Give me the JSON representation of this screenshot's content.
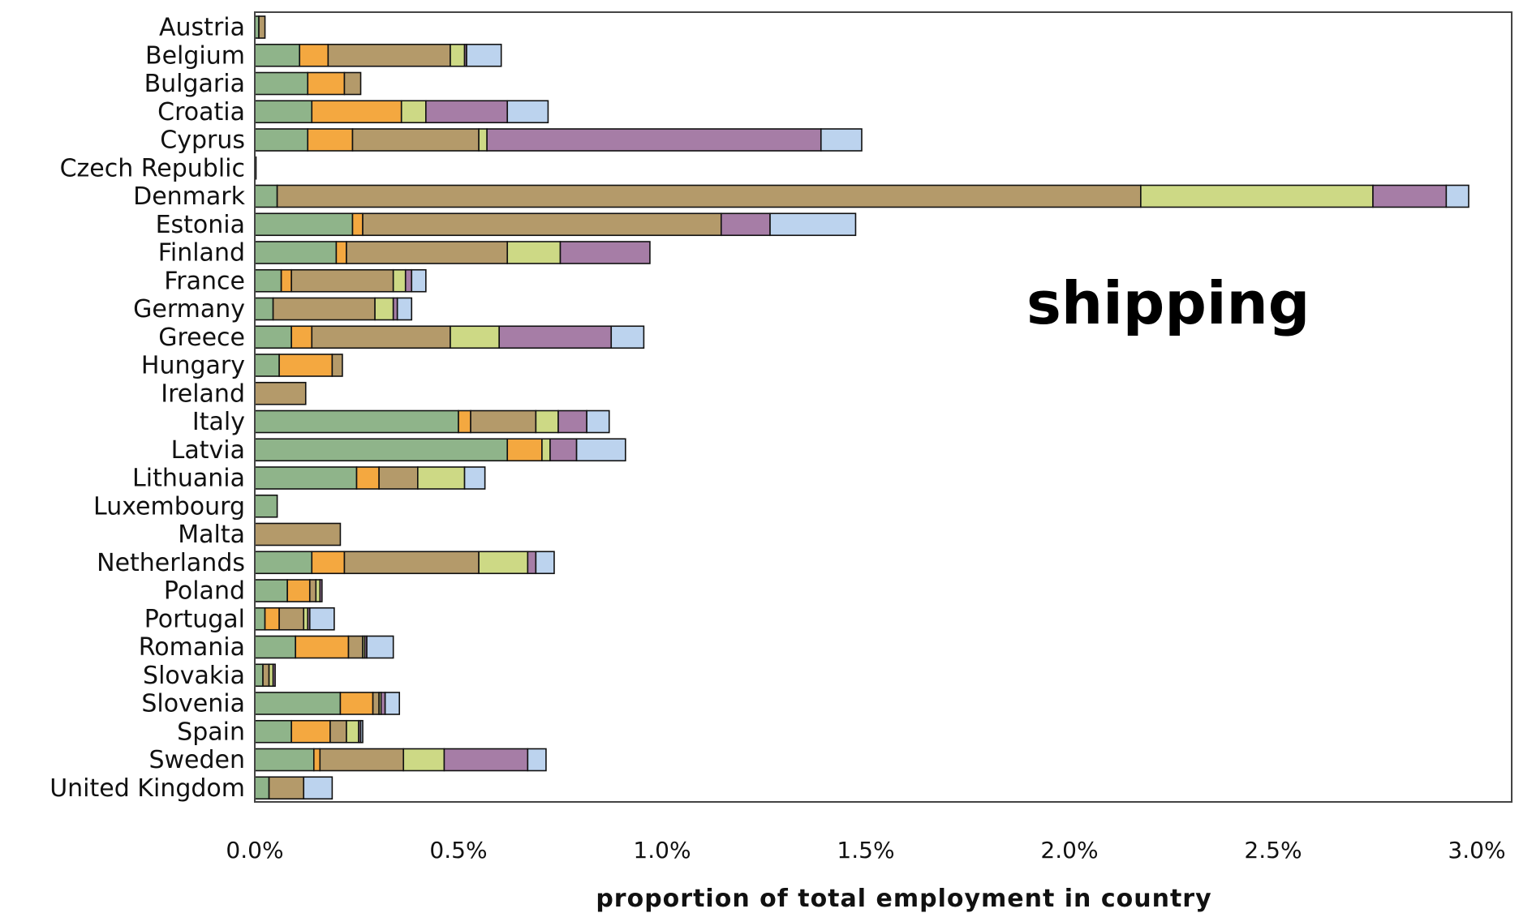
{
  "chart_data": {
    "type": "bar",
    "orientation": "horizontal",
    "stacked": true,
    "annotation": "shipping",
    "xlabel": "proportion of total employment in country",
    "ylabel": "",
    "xlim": [
      0,
      3.1
    ],
    "tick_values": [
      0,
      0.5,
      1.0,
      1.5,
      2.0,
      2.5,
      3.0
    ],
    "tick_labels": [
      "0.0%",
      "0.5%",
      "1.0%",
      "1.5%",
      "2.0%",
      "2.5%",
      "3.0%"
    ],
    "grid": false,
    "legend": "none",
    "categories": [
      "Austria",
      "Belgium",
      "Bulgaria",
      "Croatia",
      "Cyprus",
      "Czech Republic",
      "Denmark",
      "Estonia",
      "Finland",
      "France",
      "Germany",
      "Greece",
      "Hungary",
      "Ireland",
      "Italy",
      "Latvia",
      "Lithuania",
      "Luxembourg",
      "Malta",
      "Netherlands",
      "Poland",
      "Portugal",
      "Romania",
      "Slovakia",
      "Slovenia",
      "Spain",
      "Sweden",
      "United Kingdom"
    ],
    "series": [
      {
        "color": "#8fb48a",
        "values": [
          0.01,
          0.11,
          0.13,
          0.14,
          0.13,
          0.002,
          0.055,
          0.24,
          0.2,
          0.065,
          0.045,
          0.09,
          0.06,
          0,
          0.5,
          0.62,
          0.25,
          0.055,
          0,
          0.14,
          0.08,
          0.025,
          0.1,
          0.02,
          0.21,
          0.09,
          0.145,
          0.035
        ]
      },
      {
        "color": "#f4a840",
        "values": [
          0,
          0.07,
          0.09,
          0.22,
          0.11,
          0,
          0,
          0.025,
          0.025,
          0.025,
          0,
          0.05,
          0.13,
          0,
          0.03,
          0.085,
          0.055,
          0,
          0,
          0.08,
          0.055,
          0.035,
          0.13,
          0,
          0.08,
          0.095,
          0.015,
          0
        ]
      },
      {
        "color": "#b49a6a",
        "values": [
          0.015,
          0.3,
          0.04,
          0,
          0.31,
          0,
          2.12,
          0.88,
          0.395,
          0.25,
          0.25,
          0.34,
          0.025,
          0.125,
          0.16,
          0,
          0.095,
          0,
          0.21,
          0.33,
          0.015,
          0.06,
          0.035,
          0.015,
          0.015,
          0.04,
          0.205,
          0.085
        ]
      },
      {
        "color": "#cdd985",
        "values": [
          0,
          0.035,
          0,
          0.06,
          0.02,
          0,
          0.57,
          0,
          0.13,
          0.03,
          0.045,
          0.12,
          0,
          0,
          0.055,
          0.02,
          0.115,
          0,
          0,
          0.12,
          0.01,
          0.01,
          0.005,
          0.01,
          0.005,
          0.03,
          0.1,
          0
        ]
      },
      {
        "color": "#a67da6",
        "values": [
          0,
          0.005,
          0,
          0.2,
          0.82,
          0,
          0.18,
          0.12,
          0.22,
          0.015,
          0.01,
          0.275,
          0,
          0,
          0.07,
          0.065,
          0,
          0,
          0,
          0.02,
          0.005,
          0.005,
          0.005,
          0.005,
          0.01,
          0.005,
          0.205,
          0
        ]
      },
      {
        "color": "#bcd3ee",
        "values": [
          0,
          0.085,
          0,
          0.1,
          0.1,
          0,
          0.055,
          0.21,
          0,
          0.035,
          0.035,
          0.08,
          0,
          0,
          0.055,
          0.12,
          0.05,
          0,
          0,
          0.045,
          0,
          0.06,
          0.065,
          0,
          0.035,
          0.005,
          0.045,
          0.07
        ]
      }
    ]
  }
}
